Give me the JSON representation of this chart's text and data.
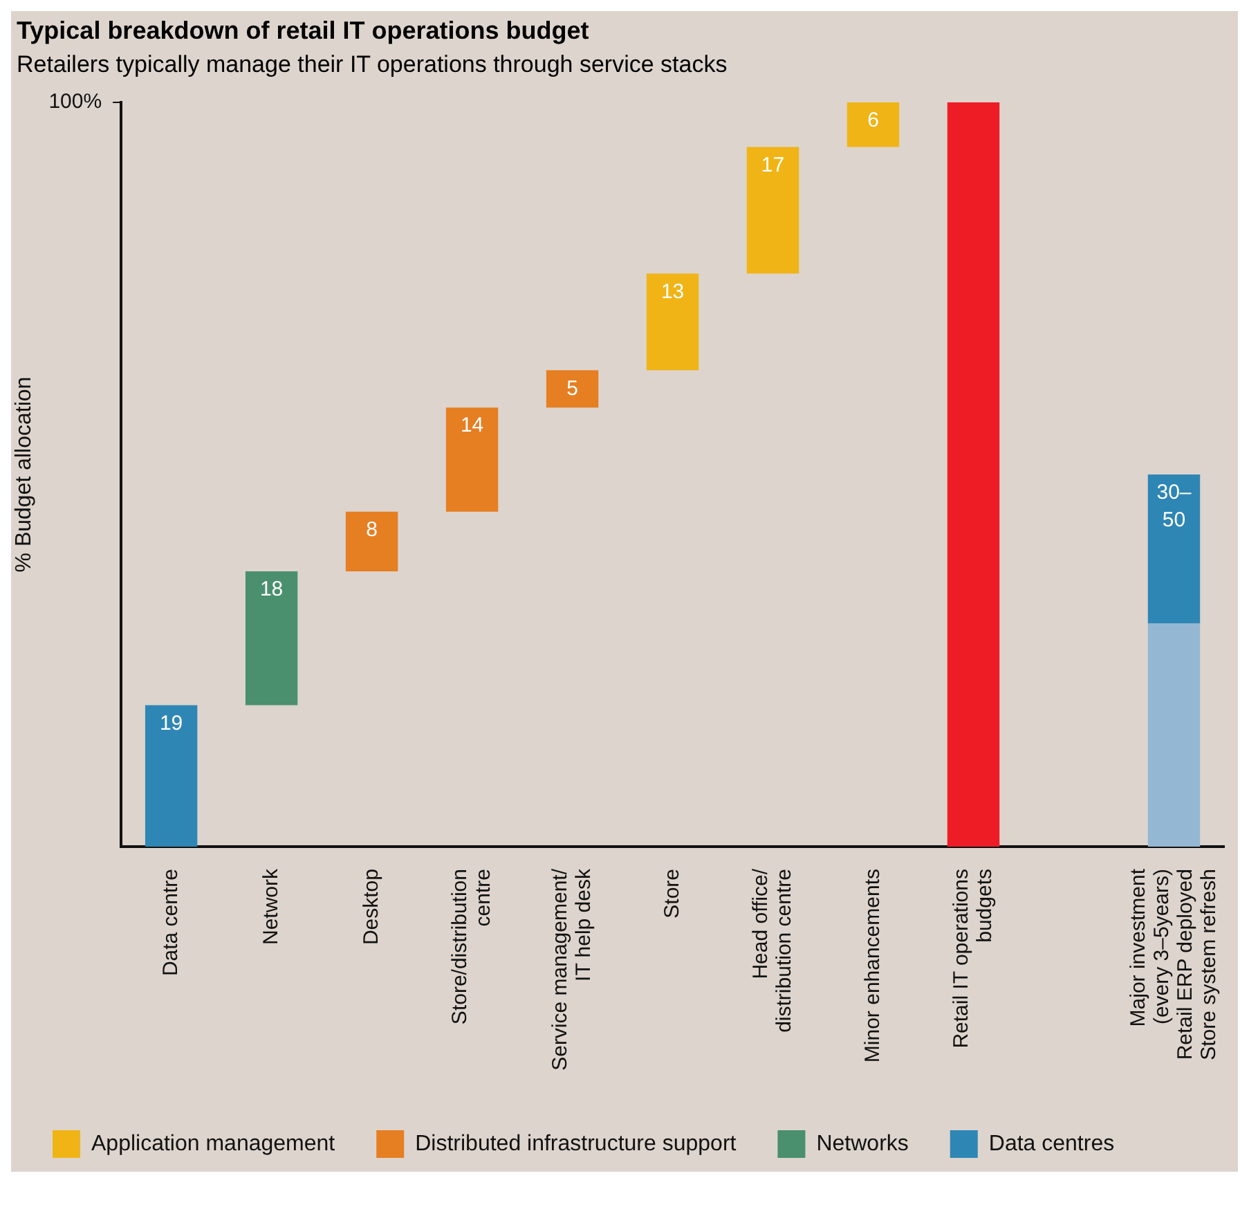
{
  "chart_data": {
    "type": "bar",
    "title": "Typical breakdown of retail IT operations budget",
    "subtitle": "Retailers typically manage their IT operations through service stacks",
    "ylabel": "% Budget allocation",
    "categories": [
      "Data centre",
      "Network",
      "Desktop",
      "Store/distribution centre",
      "Service management/ IT help desk",
      "Store",
      "Head office/ distribution centre",
      "Minor enhancements",
      "Retail IT operations budgets",
      null,
      "Major investment (every 3–5years) Retail ERP deployed Store system refresh"
    ],
    "series": [
      {
        "name": "Application management",
        "color": "#f0b416",
        "values": [
          null,
          null,
          null,
          null,
          null,
          13,
          17,
          6,
          null,
          null,
          null
        ],
        "base": [
          null,
          null,
          null,
          null,
          null,
          64,
          77,
          94,
          null,
          null,
          null
        ],
        "value_labels": [
          null,
          null,
          null,
          null,
          null,
          "13",
          "17",
          "6",
          null,
          null,
          null
        ]
      },
      {
        "name": "Distributed infrastructure support",
        "color": "#e67e22",
        "values": [
          null,
          null,
          8,
          14,
          5,
          null,
          null,
          null,
          null,
          null,
          null
        ],
        "base": [
          null,
          null,
          37,
          45,
          59,
          null,
          null,
          null,
          null,
          null,
          null
        ],
        "value_labels": [
          null,
          null,
          "8",
          "14",
          "5",
          null,
          null,
          null,
          null,
          null,
          null
        ]
      },
      {
        "name": "Networks",
        "color": "#4a8f6e",
        "values": [
          null,
          18,
          null,
          null,
          null,
          null,
          null,
          null,
          null,
          null,
          null
        ],
        "base": [
          null,
          19,
          null,
          null,
          null,
          null,
          null,
          null,
          null,
          null,
          null
        ],
        "value_labels": [
          null,
          "18",
          null,
          null,
          null,
          null,
          null,
          null,
          null,
          null,
          null
        ]
      },
      {
        "name": "Data centres",
        "color": "#2e86b5",
        "values": [
          19,
          null,
          null,
          null,
          null,
          null,
          null,
          null,
          null,
          null,
          20
        ],
        "base": [
          0,
          null,
          null,
          null,
          null,
          null,
          null,
          null,
          null,
          null,
          30
        ],
        "value_labels": [
          "19",
          null,
          null,
          null,
          null,
          null,
          null,
          null,
          null,
          null,
          "30–50"
        ]
      },
      {
        "color": "#ee1c25",
        "values": [
          null,
          null,
          null,
          null,
          null,
          null,
          null,
          null,
          100,
          null,
          null
        ],
        "base": [
          null,
          null,
          null,
          null,
          null,
          null,
          null,
          null,
          0,
          null,
          null
        ]
      },
      {
        "color": "#94b8d4",
        "values": [
          null,
          null,
          null,
          null,
          null,
          null,
          null,
          null,
          null,
          null,
          30
        ],
        "base": [
          null,
          null,
          null,
          null,
          null,
          null,
          null,
          null,
          null,
          null,
          0
        ]
      }
    ],
    "ylim": [
      0,
      100
    ],
    "yticks": [
      {
        "value": 100,
        "label": "100%"
      }
    ],
    "grid": false,
    "legend": "bottom"
  }
}
